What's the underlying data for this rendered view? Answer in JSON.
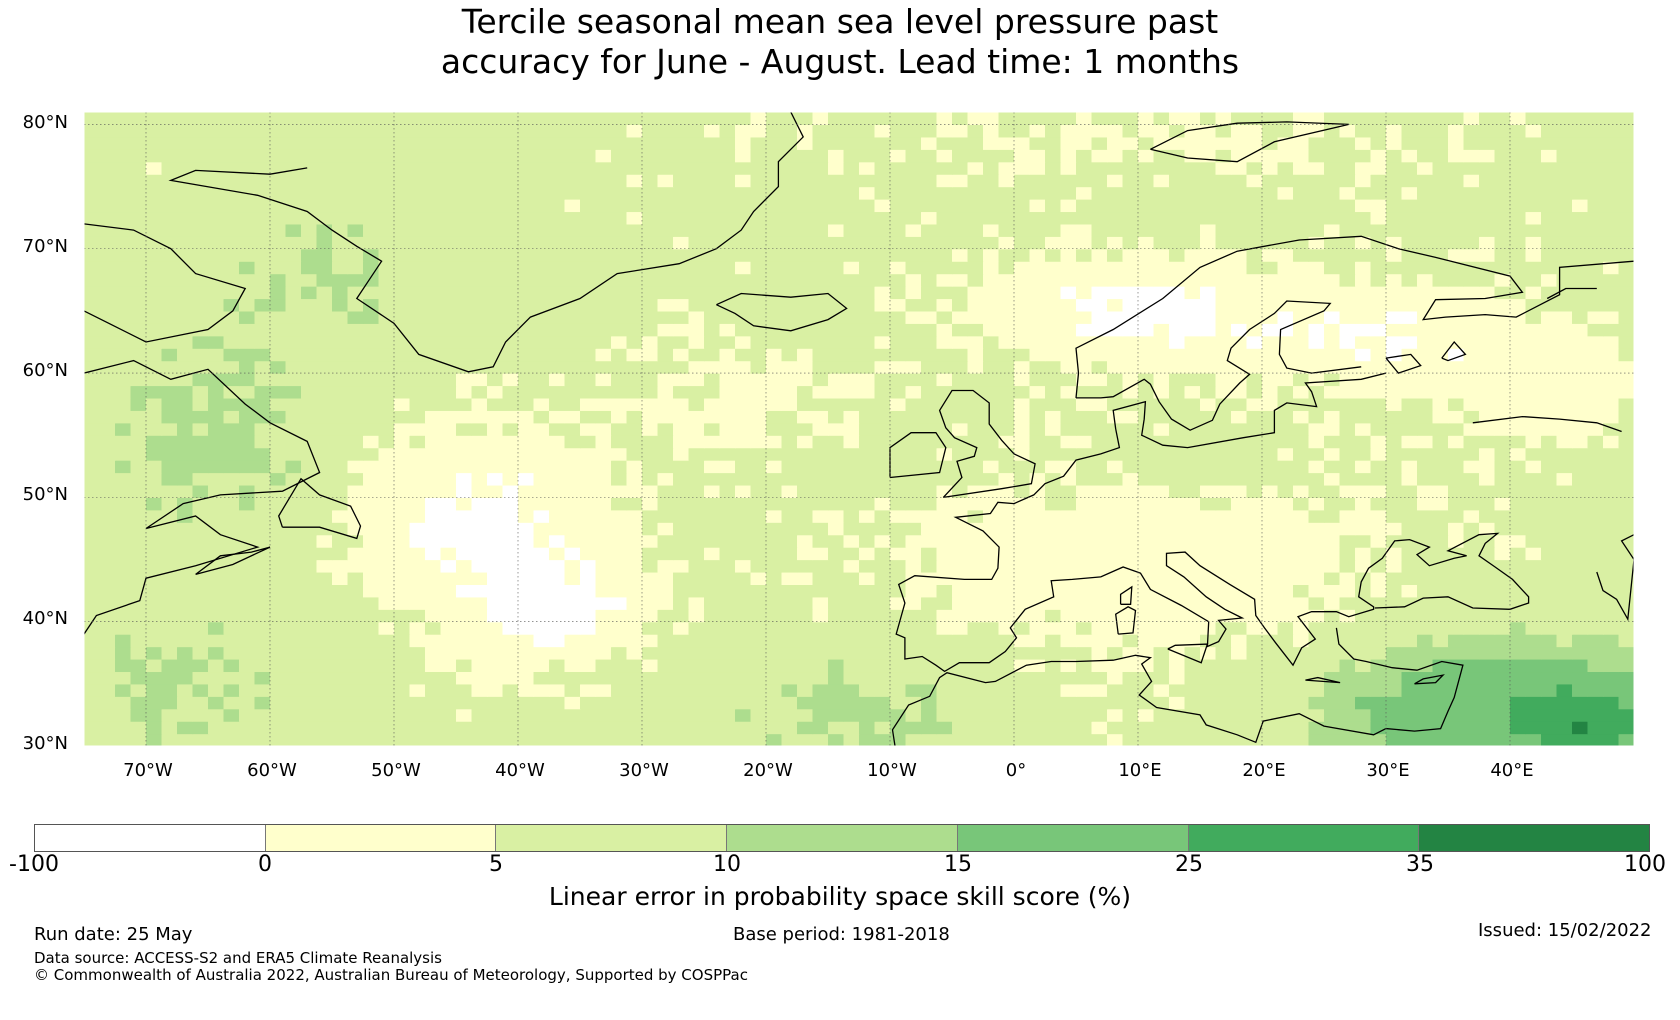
{
  "title": {
    "line1": "Tercile seasonal mean sea level pressure past",
    "line2": "accuracy for June - August. Lead time: 1 months"
  },
  "map": {
    "lon_range": [
      -75,
      50
    ],
    "lat_range": [
      30,
      81
    ],
    "lat_labels": [
      "80°N",
      "70°N",
      "60°N",
      "50°N",
      "40°N",
      "30°N"
    ],
    "lon_labels": [
      "70°W",
      "60°W",
      "50°W",
      "40°W",
      "30°W",
      "20°W",
      "10°W",
      "0°",
      "10°E",
      "20°E",
      "30°E",
      "40°E"
    ],
    "gridlines": true
  },
  "colorbar": {
    "ticks": [
      "-100",
      "0",
      "5",
      "10",
      "15",
      "25",
      "35",
      "100"
    ],
    "colors": [
      "#ffffff",
      "#ffffcc",
      "#d9f0a3",
      "#addd8e",
      "#78c679",
      "#41ab5d",
      "#238443"
    ],
    "label": "Linear error in probability space skill score (%)"
  },
  "footer": {
    "run_date": "Run date: 25 May",
    "base_period": "Base period: 1981-2018",
    "issued": "Issued: 15/02/2022",
    "data_source": "Data source: ACCESS-S2 and ERA5 Climate Reanalysis",
    "copyright": "© Commonwealth of Australia 2022, Australian Bureau of Meteorology, Supported by COSPPac"
  }
}
